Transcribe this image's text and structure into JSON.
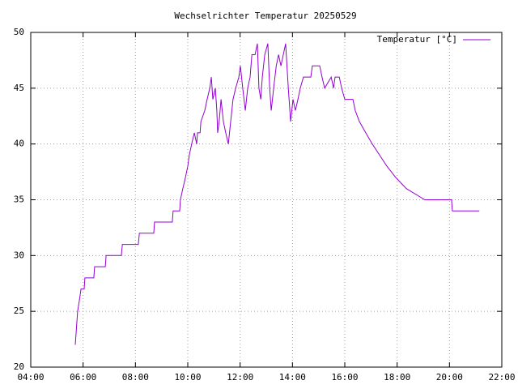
{
  "chart_data": {
    "type": "line",
    "title": "Wechselrichter Temperatur 20250529",
    "xlim": [
      4,
      22
    ],
    "xticks": [
      {
        "value": 4,
        "label": "04:00"
      },
      {
        "value": 6,
        "label": "06:00"
      },
      {
        "value": 8,
        "label": "08:00"
      },
      {
        "value": 10,
        "label": "10:00"
      },
      {
        "value": 12,
        "label": "12:00"
      },
      {
        "value": 14,
        "label": "14:00"
      },
      {
        "value": 16,
        "label": "16:00"
      },
      {
        "value": 18,
        "label": "18:00"
      },
      {
        "value": 20,
        "label": "20:00"
      },
      {
        "value": 22,
        "label": "22:00"
      }
    ],
    "ylim": [
      20,
      50
    ],
    "yticks": [
      20,
      25,
      30,
      35,
      40,
      45,
      50
    ],
    "grid": true,
    "legend": "top-right",
    "x": [
      5.7,
      5.79,
      5.86,
      5.92,
      6.04,
      6.07,
      6.41,
      6.44,
      6.85,
      6.88,
      7.46,
      7.5,
      8.11,
      8.15,
      8.7,
      8.73,
      9.41,
      9.44,
      9.69,
      9.72,
      9.81,
      9.91,
      10.0,
      10.06,
      10.15,
      10.25,
      10.34,
      10.37,
      10.47,
      10.5,
      10.65,
      10.74,
      10.84,
      10.9,
      10.96,
      11.05,
      11.11,
      11.14,
      11.2,
      11.27,
      11.36,
      11.45,
      11.55,
      11.64,
      11.73,
      11.83,
      11.95,
      12.01,
      12.1,
      12.2,
      12.29,
      12.38,
      12.45,
      12.57,
      12.66,
      12.72,
      12.79,
      12.85,
      12.94,
      13.06,
      13.13,
      13.19,
      13.28,
      13.38,
      13.47,
      13.56,
      13.65,
      13.74,
      13.84,
      13.93,
      14.02,
      14.11,
      14.21,
      14.3,
      14.42,
      14.7,
      14.76,
      15.04,
      15.13,
      15.23,
      15.48,
      15.57,
      15.63,
      15.79,
      15.88,
      16.0,
      16.31,
      16.4,
      16.56,
      16.8,
      17.05,
      17.33,
      17.61,
      17.95,
      18.35,
      19.06,
      20.08,
      20.11,
      21.14
    ],
    "series": [
      {
        "name": "Temperatur [°C]",
        "color": "#9400d3",
        "values": [
          22,
          25,
          26,
          27,
          27,
          28,
          28,
          29,
          29,
          30,
          30,
          31,
          31,
          32,
          32,
          33,
          33,
          34,
          34,
          35,
          36,
          37,
          38,
          39,
          40,
          41,
          40,
          41,
          41,
          42,
          43,
          44,
          45,
          46,
          44,
          45,
          43,
          41,
          42,
          44,
          42,
          41,
          40,
          42,
          44,
          45,
          46,
          47,
          45,
          43,
          45,
          46,
          48,
          48,
          49,
          45,
          44,
          46,
          48,
          49,
          45,
          43,
          45,
          47,
          48,
          47,
          48,
          49,
          45,
          42,
          44,
          43,
          44,
          45,
          46,
          46,
          47,
          47,
          46,
          45,
          46,
          45,
          46,
          46,
          45,
          44,
          44,
          43,
          42,
          41,
          40,
          39,
          38,
          37,
          36,
          35,
          35,
          34,
          34
        ]
      }
    ]
  }
}
